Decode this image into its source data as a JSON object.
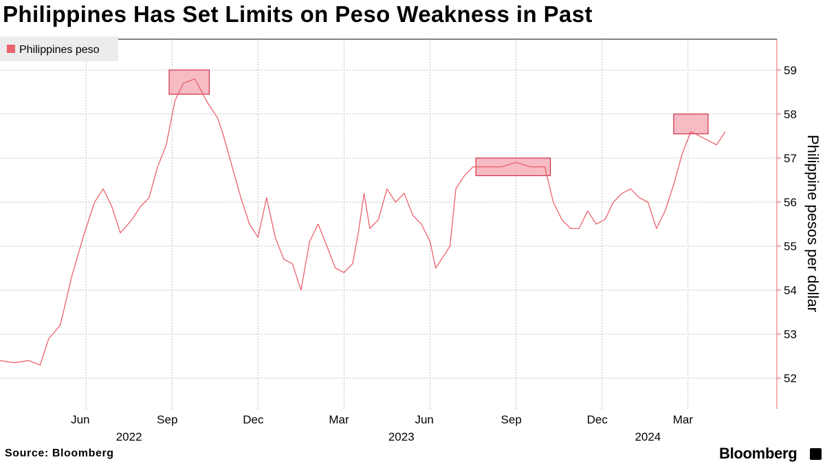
{
  "header": {
    "title": "Philippines Has Set Limits on Peso Weakness in Past"
  },
  "footer": {
    "source": "Source: Bloomberg",
    "brand": "Bloomberg"
  },
  "colors": {
    "series": "#e9616a",
    "band_fill": "#f4a4b0",
    "band_stroke": "#cc2f44",
    "axis": "#e9616a",
    "grid": "#bdbdbd"
  },
  "chart_data": {
    "type": "line",
    "title": "Philippines Has Set Limits on Peso Weakness in Past",
    "xlabel": "",
    "ylabel": "Philippine pesos per dollar",
    "ylim": [
      51.3,
      59.7
    ],
    "yticks": [
      52,
      53,
      54,
      55,
      56,
      57,
      58,
      59
    ],
    "grid": true,
    "legend": {
      "position": "top-left",
      "entries": [
        "Philippines peso"
      ]
    },
    "x_range_months": [
      0,
      27.1
    ],
    "x_note": "month index, 0 = 2022-03-01",
    "month_ticks": [
      {
        "m": 3,
        "label": "Jun"
      },
      {
        "m": 6,
        "label": "Sep"
      },
      {
        "m": 9,
        "label": "Dec"
      },
      {
        "m": 12,
        "label": "Mar"
      },
      {
        "m": 15,
        "label": "Jun"
      },
      {
        "m": 18,
        "label": "Sep"
      },
      {
        "m": 21,
        "label": "Dec"
      },
      {
        "m": 24,
        "label": "Mar"
      }
    ],
    "year_labels": [
      {
        "m": 4.5,
        "label": "2022"
      },
      {
        "m": 14.0,
        "label": "2023"
      },
      {
        "m": 22.6,
        "label": "2024"
      }
    ],
    "highlight_bands": [
      {
        "x0": 5.9,
        "x1": 7.3,
        "y0": 58.45,
        "y1": 59.0
      },
      {
        "x0": 16.6,
        "x1": 19.2,
        "y0": 56.6,
        "y1": 57.0
      },
      {
        "x0": 23.5,
        "x1": 24.7,
        "y0": 57.55,
        "y1": 58.0
      }
    ],
    "series": [
      {
        "name": "Philippines peso",
        "points": [
          [
            0.0,
            52.4
          ],
          [
            0.5,
            52.35
          ],
          [
            1.0,
            52.4
          ],
          [
            1.4,
            52.3
          ],
          [
            1.7,
            52.9
          ],
          [
            2.1,
            53.2
          ],
          [
            2.5,
            54.3
          ],
          [
            2.9,
            55.2
          ],
          [
            3.3,
            56.0
          ],
          [
            3.6,
            56.3
          ],
          [
            3.9,
            55.9
          ],
          [
            4.2,
            55.3
          ],
          [
            4.6,
            55.6
          ],
          [
            4.9,
            55.9
          ],
          [
            5.2,
            56.1
          ],
          [
            5.5,
            56.8
          ],
          [
            5.8,
            57.3
          ],
          [
            6.1,
            58.3
          ],
          [
            6.4,
            58.7
          ],
          [
            6.8,
            58.8
          ],
          [
            7.2,
            58.3
          ],
          [
            7.6,
            57.9
          ],
          [
            7.8,
            57.5
          ],
          [
            8.1,
            56.8
          ],
          [
            8.4,
            56.1
          ],
          [
            8.7,
            55.5
          ],
          [
            9.0,
            55.2
          ],
          [
            9.3,
            56.1
          ],
          [
            9.6,
            55.2
          ],
          [
            9.9,
            54.7
          ],
          [
            10.2,
            54.6
          ],
          [
            10.5,
            54.0
          ],
          [
            10.8,
            55.1
          ],
          [
            11.1,
            55.5
          ],
          [
            11.4,
            55.0
          ],
          [
            11.7,
            54.5
          ],
          [
            12.0,
            54.4
          ],
          [
            12.3,
            54.6
          ],
          [
            12.5,
            55.3
          ],
          [
            12.7,
            56.2
          ],
          [
            12.9,
            55.4
          ],
          [
            13.2,
            55.6
          ],
          [
            13.5,
            56.3
          ],
          [
            13.8,
            56.0
          ],
          [
            14.1,
            56.2
          ],
          [
            14.4,
            55.7
          ],
          [
            14.7,
            55.5
          ],
          [
            15.0,
            55.1
          ],
          [
            15.2,
            54.5
          ],
          [
            15.5,
            54.8
          ],
          [
            15.7,
            55.0
          ],
          [
            15.9,
            56.3
          ],
          [
            16.2,
            56.6
          ],
          [
            16.5,
            56.8
          ],
          [
            17.0,
            56.8
          ],
          [
            17.5,
            56.8
          ],
          [
            18.0,
            56.9
          ],
          [
            18.5,
            56.8
          ],
          [
            19.0,
            56.8
          ],
          [
            19.3,
            56.0
          ],
          [
            19.6,
            55.6
          ],
          [
            19.9,
            55.4
          ],
          [
            20.2,
            55.4
          ],
          [
            20.5,
            55.8
          ],
          [
            20.8,
            55.5
          ],
          [
            21.1,
            55.6
          ],
          [
            21.4,
            56.0
          ],
          [
            21.7,
            56.2
          ],
          [
            22.0,
            56.3
          ],
          [
            22.3,
            56.1
          ],
          [
            22.6,
            56.0
          ],
          [
            22.9,
            55.4
          ],
          [
            23.2,
            55.8
          ],
          [
            23.5,
            56.4
          ],
          [
            23.8,
            57.1
          ],
          [
            24.1,
            57.6
          ],
          [
            24.4,
            57.5
          ],
          [
            24.7,
            57.4
          ],
          [
            25.0,
            57.3
          ],
          [
            25.3,
            57.6
          ]
        ]
      }
    ]
  }
}
